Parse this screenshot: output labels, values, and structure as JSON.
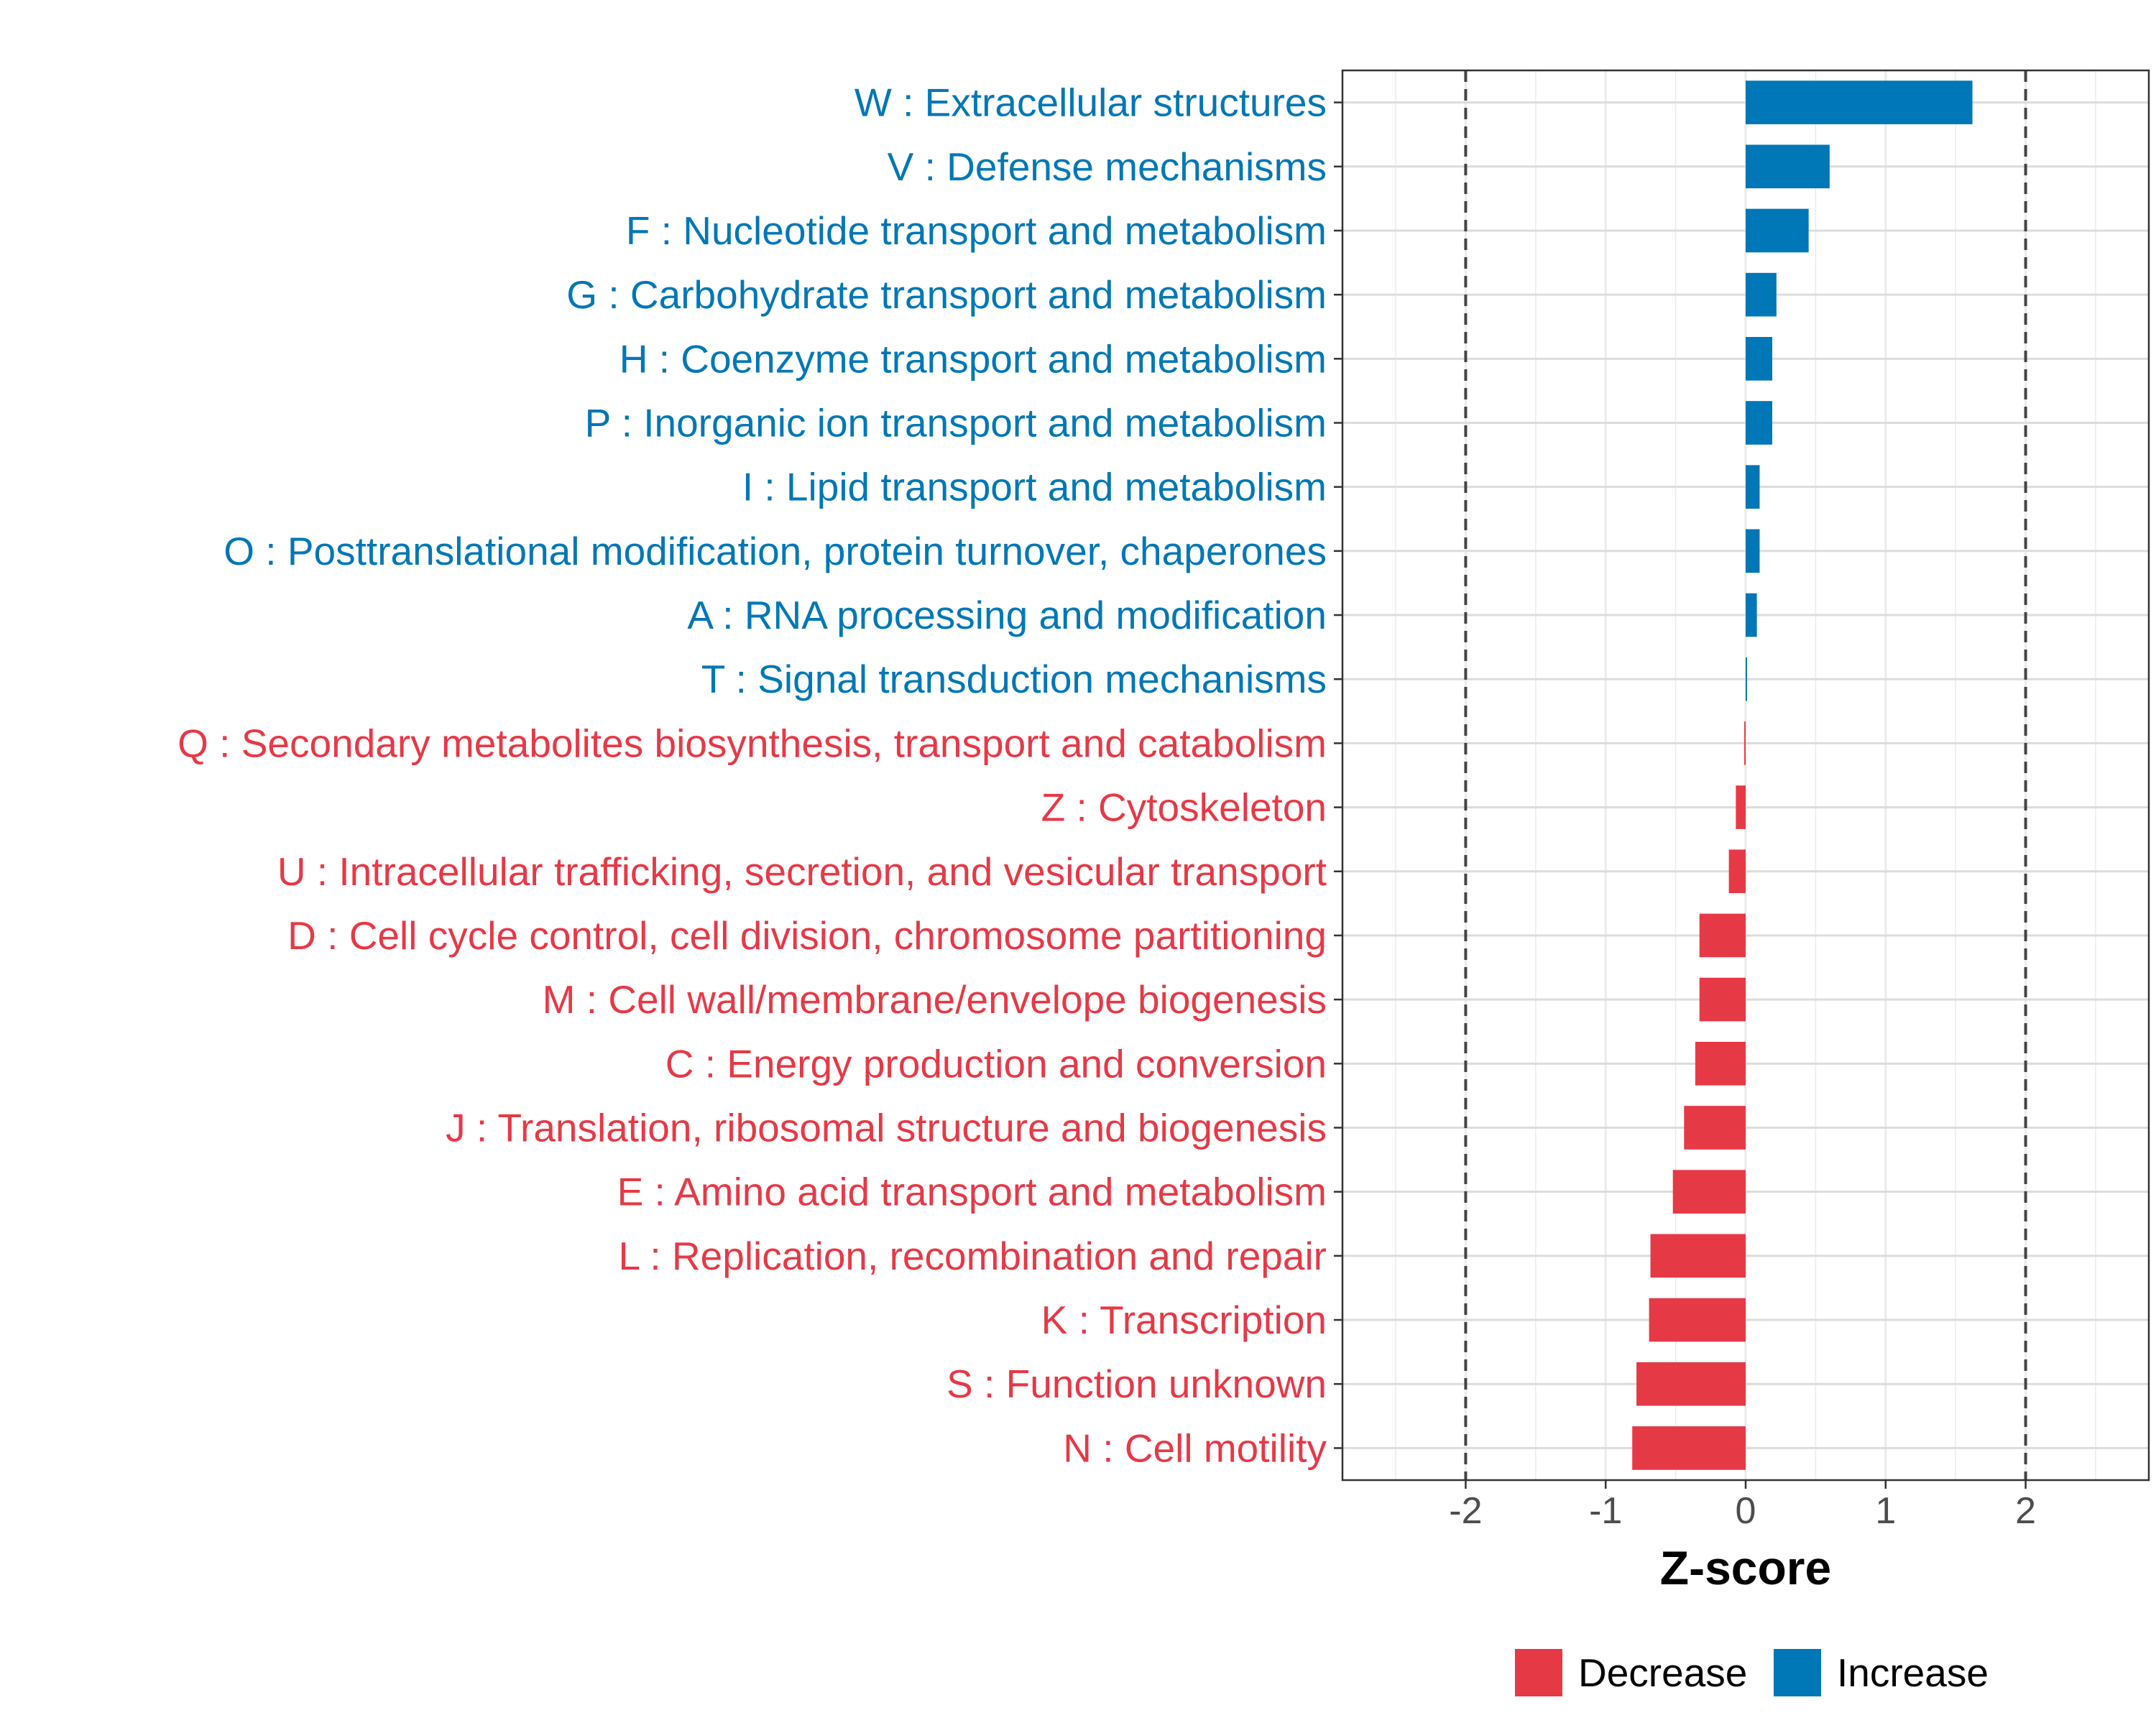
{
  "chart_data": {
    "type": "bar",
    "orientation": "horizontal",
    "title": "",
    "xlabel": "Z-score",
    "ylabel": "",
    "xlim": [
      -2.88,
      2.88
    ],
    "xticks": [
      -2,
      -1,
      0,
      1,
      2
    ],
    "xtick_labels": [
      "-2",
      "-1",
      "0",
      "1",
      "2"
    ],
    "reference_lines": [
      -2,
      2
    ],
    "grid": true,
    "legend_position": "bottom",
    "legend": [
      {
        "name": "Decrease",
        "color": "#E63946"
      },
      {
        "name": "Increase",
        "color": "#0077B6"
      }
    ],
    "categories": [
      "W : Extracellular structures",
      "V : Defense mechanisms",
      "F : Nucleotide transport and metabolism",
      "G : Carbohydrate transport and metabolism",
      "H : Coenzyme transport and metabolism",
      "P : Inorganic ion transport and metabolism",
      "I : Lipid transport and metabolism",
      "O : Posttranslational modification, protein turnover, chaperones",
      "A : RNA processing and modification",
      "T : Signal transduction mechanisms",
      "Q : Secondary metabolites biosynthesis, transport and catabolism",
      "Z : Cytoskeleton",
      "U : Intracellular trafficking, secretion, and vesicular transport",
      "D : Cell cycle control, cell division, chromosome partitioning",
      "M : Cell wall/membrane/envelope biogenesis",
      "C : Energy production and conversion",
      "J : Translation, ribosomal structure and biogenesis",
      "E : Amino acid transport and metabolism",
      "L : Replication, recombination and repair",
      "K : Transcription",
      "S : Function unknown",
      "N : Cell motility"
    ],
    "values": [
      1.62,
      0.6,
      0.45,
      0.22,
      0.19,
      0.19,
      0.1,
      0.1,
      0.08,
      0.01,
      -0.01,
      -0.07,
      -0.12,
      -0.33,
      -0.33,
      -0.36,
      -0.44,
      -0.52,
      -0.68,
      -0.69,
      -0.78,
      -0.81
    ],
    "groups": [
      "Increase",
      "Increase",
      "Increase",
      "Increase",
      "Increase",
      "Increase",
      "Increase",
      "Increase",
      "Increase",
      "Increase",
      "Decrease",
      "Decrease",
      "Decrease",
      "Decrease",
      "Decrease",
      "Decrease",
      "Decrease",
      "Decrease",
      "Decrease",
      "Decrease",
      "Decrease",
      "Decrease"
    ]
  }
}
